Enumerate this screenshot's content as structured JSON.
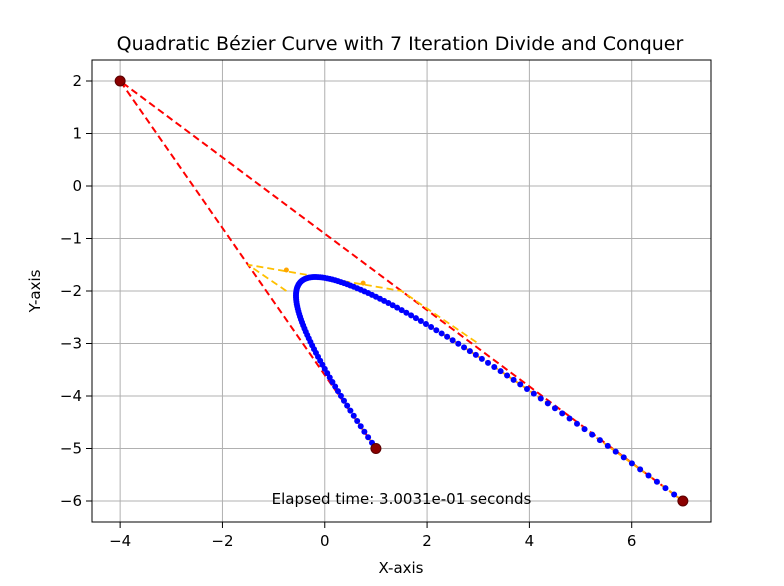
{
  "chart_data": {
    "type": "line",
    "title": "Quadratic Bézier Curve with 7 Iteration Divide and Conquer",
    "xlabel": "X-axis",
    "ylabel": "Y-axis",
    "xlim": [
      -4.55,
      7.55
    ],
    "ylim": [
      -6.4,
      2.4
    ],
    "xticks": [
      -4,
      -2,
      0,
      2,
      4,
      6
    ],
    "yticks": [
      2,
      1,
      0,
      -1,
      -2,
      -3,
      -4,
      -5,
      -6
    ],
    "xtick_labels": [
      "−4",
      "−2",
      "0",
      "2",
      "4",
      "6"
    ],
    "ytick_labels": [
      "2",
      "1",
      "0",
      "−1",
      "−2",
      "−3",
      "−4",
      "−5",
      "−6"
    ],
    "grid": true,
    "annotation": {
      "text": "Elapsed time: 3.0031e-01 seconds",
      "x": 1.5,
      "y": -6.0
    },
    "control_points": {
      "x": [
        1,
        -4,
        7
      ],
      "y": [
        -5,
        2,
        -6
      ],
      "color": "#8b0000"
    },
    "control_polygon": {
      "x": [
        1,
        -4,
        7
      ],
      "y": [
        -5,
        2,
        -6
      ],
      "color": "#ff0000",
      "style": "dashed"
    },
    "helper_polygon": {
      "x": [
        -0.75,
        -1.5,
        1.5,
        3.0
      ],
      "y": [
        -2.0,
        -1.5,
        -2.0,
        -3.0
      ],
      "color": "#ffc000",
      "style": "dashed"
    },
    "helper_midpoints": {
      "x": [
        -0.75,
        0.75
      ],
      "y": [
        -1.6,
        -1.85
      ],
      "color": "#ffa500"
    },
    "curve": {
      "control_x": [
        1,
        -4,
        7
      ],
      "control_y": [
        -5,
        2,
        -6
      ],
      "samples": 129,
      "line_color": "#ffa500",
      "point_color": "#0000ff"
    }
  }
}
